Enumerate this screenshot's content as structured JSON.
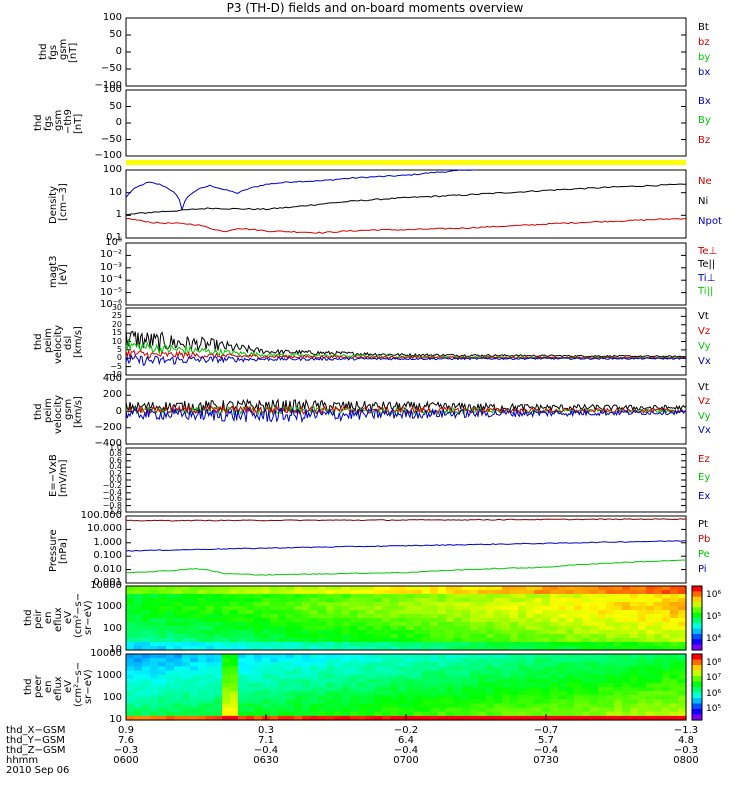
{
  "title": "P3 (TH-D) fields and on-board moments overview",
  "colors": {
    "black": "#000000",
    "red": "#d40000",
    "green": "#00c800",
    "blue": "#0000c8",
    "yellow": "#ffff00",
    "darkred": "#800000"
  },
  "chart_data": [
    {
      "type": "line",
      "id": "fgs",
      "ylabel": [
        "thd",
        "fgs",
        "gsm",
        "[nT]"
      ],
      "yticks": [
        "100",
        "50",
        "0",
        "−50",
        "−100"
      ],
      "ylim": [
        -100,
        100
      ],
      "legend": [
        "Bt",
        "bz",
        "by",
        "bx"
      ],
      "legend_colors": [
        "#000000",
        "#d40000",
        "#00c800",
        "#0000c8"
      ],
      "series": []
    },
    {
      "type": "line",
      "id": "fgs_th",
      "ylabel": [
        "thd",
        "fgs",
        "gsm",
        "−th9",
        "[nT]"
      ],
      "yticks": [
        "100",
        "50",
        "0",
        "−50",
        "−100"
      ],
      "ylim": [
        -120,
        120
      ],
      "legend": [
        "Bx",
        "By",
        "Bz"
      ],
      "legend_colors": [
        "#0000c8",
        "#00c800",
        "#d40000"
      ],
      "series": []
    },
    {
      "type": "line",
      "id": "density",
      "ylabel": [
        "Density",
        "[cm−3]"
      ],
      "yticks": [
        "100",
        "10",
        "1",
        "0.1"
      ],
      "ylim": [
        0.1,
        200
      ],
      "log": true,
      "legend": [
        "Ne",
        "Ni",
        "Npot"
      ],
      "legend_colors": [
        "#d40000",
        "#000000",
        "#0000c8"
      ],
      "series": [
        {
          "name": "Npot",
          "color": "#0000c8",
          "x": [
            6.0,
            6.08,
            6.12,
            6.2,
            6.25,
            6.3,
            6.35,
            6.4,
            6.5,
            6.6,
            6.7,
            6.8,
            6.9,
            7.0,
            7.1,
            7.2,
            7.25
          ],
          "y": [
            9,
            50,
            40,
            2.5,
            20,
            35,
            22,
            15,
            40,
            55,
            60,
            80,
            95,
            110,
            150,
            190,
            220
          ]
        },
        {
          "name": "Ni",
          "color": "#000000",
          "x": [
            6.0,
            6.05,
            6.1,
            6.2,
            6.3,
            6.4,
            6.5,
            6.6,
            6.7,
            6.8,
            6.9,
            7.0,
            7.2,
            7.4,
            7.6,
            7.8,
            8.0
          ],
          "y": [
            1.3,
            1.6,
            1.8,
            2.2,
            2.8,
            2.6,
            2.5,
            3.2,
            4.5,
            6,
            7.5,
            9,
            12,
            17,
            24,
            32,
            40
          ]
        },
        {
          "name": "Ne",
          "color": "#d40000",
          "x": [
            6.0,
            6.05,
            6.1,
            6.2,
            6.25,
            6.3,
            6.35,
            6.4,
            6.5,
            6.6,
            6.7,
            6.8,
            6.9,
            7.0,
            7.2,
            7.4,
            7.6,
            7.8,
            8.0
          ],
          "y": [
            0.9,
            0.7,
            0.55,
            0.5,
            0.45,
            0.3,
            0.2,
            0.3,
            0.22,
            0.2,
            0.18,
            0.22,
            0.25,
            0.25,
            0.3,
            0.4,
            0.55,
            0.7,
            0.9
          ]
        }
      ]
    },
    {
      "type": "line",
      "id": "magt3",
      "ylabel": [
        "magt3",
        "[eV]"
      ],
      "yticks": [
        "10⁰",
        "10⁻²",
        "10⁻³",
        "10⁻⁴",
        "10⁻⁵",
        "10⁻⁶"
      ],
      "ylim": [
        -6,
        0
      ],
      "legend": [
        "Te⊥",
        "Te||",
        "Ti⊥",
        "Ti||"
      ],
      "legend_colors": [
        "#d40000",
        "#000000",
        "#0000c8",
        "#00c800"
      ],
      "series": []
    },
    {
      "type": "line",
      "id": "vel_dsl",
      "ylabel": [
        "thd",
        "peim",
        "velocity",
        "dsl",
        "[km/s]"
      ],
      "yticks": [
        "30",
        "25",
        "20",
        "15",
        "10",
        "5",
        "0",
        "−5",
        "−10"
      ],
      "ylim": [
        -10,
        30
      ],
      "legend": [
        "Vt",
        "Vz",
        "Vy",
        "Vx"
      ],
      "legend_colors": [
        "#000000",
        "#d40000",
        "#00c800",
        "#0000c8"
      ],
      "series": [
        {
          "name": "Vt",
          "color": "#000000",
          "x": [
            6.0,
            6.1,
            6.2,
            6.3,
            6.5,
            7.0,
            7.5,
            8.0
          ],
          "y": [
            12,
            10,
            9,
            8,
            4,
            2,
            1.5,
            1
          ],
          "noise": [
            7,
            6,
            5,
            4,
            1.5,
            0.8,
            0.5,
            0.4
          ]
        },
        {
          "name": "Vy",
          "color": "#00c800",
          "x": [
            6.0,
            6.1,
            6.2,
            6.3,
            6.5,
            7.0,
            7.5,
            8.0
          ],
          "y": [
            8,
            6,
            5,
            4,
            2,
            1,
            0.5,
            0.3
          ],
          "noise": [
            4,
            3,
            3,
            2,
            1,
            0.5,
            0.4,
            0.3
          ]
        },
        {
          "name": "Vz",
          "color": "#d40000",
          "x": [
            6.0,
            6.1,
            6.2,
            6.3,
            6.5,
            7.0,
            7.5,
            8.0
          ],
          "y": [
            3,
            2,
            2,
            1.5,
            1,
            0.5,
            0.3,
            0.2
          ],
          "noise": [
            3,
            2,
            2,
            1.5,
            1,
            0.5,
            0.4,
            0.3
          ]
        },
        {
          "name": "Vx",
          "color": "#0000c8",
          "x": [
            6.0,
            6.1,
            6.2,
            6.3,
            6.5,
            7.0,
            7.5,
            8.0
          ],
          "y": [
            -1,
            -1.5,
            -1,
            -0.8,
            -0.5,
            -0.3,
            -0.2,
            -0.2
          ],
          "noise": [
            3,
            3,
            2.5,
            2,
            1,
            0.6,
            0.5,
            0.4
          ]
        }
      ]
    },
    {
      "type": "line",
      "id": "vel_gsm",
      "ylabel": [
        "thd",
        "peim",
        "velocity",
        "gsm",
        "[km/s]"
      ],
      "yticks": [
        "400",
        "200",
        "0",
        "−200",
        "−400"
      ],
      "ylim": [
        -400,
        400
      ],
      "legend": [
        "Vt",
        "Vz",
        "Vy",
        "Vx"
      ],
      "legend_colors": [
        "#000000",
        "#d40000",
        "#00c800",
        "#0000c8"
      ],
      "series": [
        {
          "name": "Vt",
          "color": "#000000",
          "x": [
            6.0,
            6.5,
            7.0,
            7.5,
            8.0
          ],
          "y": [
            60,
            70,
            60,
            50,
            45
          ],
          "noise": [
            60,
            80,
            60,
            40,
            30
          ]
        },
        {
          "name": "Vy",
          "color": "#00c800",
          "x": [
            6.0,
            6.5,
            7.0,
            7.5,
            8.0
          ],
          "y": [
            10,
            10,
            5,
            5,
            5
          ],
          "noise": [
            40,
            50,
            40,
            30,
            20
          ]
        },
        {
          "name": "Vz",
          "color": "#d40000",
          "x": [
            6.0,
            6.5,
            7.0,
            7.5,
            8.0
          ],
          "y": [
            20,
            20,
            15,
            10,
            10
          ],
          "noise": [
            40,
            50,
            40,
            30,
            20
          ]
        },
        {
          "name": "Vx",
          "color": "#0000c8",
          "x": [
            6.0,
            6.5,
            7.0,
            7.5,
            8.0
          ],
          "y": [
            -30,
            -50,
            -30,
            -20,
            -10
          ],
          "noise": [
            60,
            90,
            60,
            40,
            25
          ]
        }
      ]
    },
    {
      "type": "line",
      "id": "efield",
      "ylabel": [
        "E=−VxB",
        "[mV/m]"
      ],
      "yticks": [
        "1.0",
        "0.8",
        "0.6",
        "0.4",
        "0.2",
        "0.0",
        "−0.2",
        "−0.4",
        "−0.6",
        "−0.8",
        "−1.0"
      ],
      "ylim": [
        -1,
        1
      ],
      "legend": [
        "Ez",
        "Ey",
        "Ex"
      ],
      "legend_colors": [
        "#d40000",
        "#00c800",
        "#0000c8"
      ],
      "series": []
    },
    {
      "type": "line",
      "id": "pressure",
      "ylabel": [
        "Pressure",
        "[nPa]"
      ],
      "yticks": [
        "100.000",
        "10.000",
        "1.000",
        "0.100",
        "0.010",
        "0.001"
      ],
      "ylim": [
        0.001,
        100
      ],
      "log": true,
      "legend": [
        "Pt",
        "Pb",
        "Pe",
        "Pi"
      ],
      "legend_colors": [
        "#000000",
        "#d40000",
        "#00c800",
        "#0000c8"
      ],
      "series": [
        {
          "name": "Pt",
          "color": "#800000",
          "x": [
            6.0,
            7.0,
            8.0
          ],
          "y": [
            45,
            50,
            60
          ]
        },
        {
          "name": "Pi",
          "color": "#0000c8",
          "x": [
            6.0,
            6.2,
            6.5,
            7.0,
            7.5,
            8.0
          ],
          "y": [
            0.25,
            0.3,
            0.4,
            0.6,
            0.9,
            1.4
          ]
        },
        {
          "name": "Pe",
          "color": "#00c800",
          "x": [
            6.0,
            6.15,
            6.25,
            6.35,
            6.5,
            7.0,
            7.5,
            8.0
          ],
          "y": [
            0.006,
            0.008,
            0.012,
            0.005,
            0.004,
            0.006,
            0.015,
            0.05
          ]
        }
      ]
    },
    {
      "type": "heatmap",
      "id": "peir",
      "ylabel": [
        "thd",
        "peir",
        "en",
        "eflux",
        "eV",
        "(cm²−s−",
        "sr−eV)"
      ],
      "yticks": [
        "10000",
        "1000",
        "100",
        "10"
      ],
      "colorbar_ticks": [
        "10⁶",
        "10⁵",
        "10⁴"
      ]
    },
    {
      "type": "heatmap",
      "id": "peer",
      "ylabel": [
        "thd",
        "peer",
        "en",
        "eflux",
        "eV",
        "(cm²−s−",
        "sr−eV)"
      ],
      "yticks": [
        "10000",
        "1000",
        "100",
        "10"
      ],
      "colorbar_ticks": [
        "10⁸",
        "10⁷",
        "10⁶",
        "10⁵"
      ]
    }
  ],
  "xaxis": {
    "rows": [
      {
        "label": "thd_X−GSM",
        "values": [
          "0.9",
          "0.3",
          "−0.2",
          "−0.7",
          "−1.3"
        ]
      },
      {
        "label": "thd_Y−GSM",
        "values": [
          "7.6",
          "7.1",
          "6.4",
          "5.7",
          "4.8"
        ]
      },
      {
        "label": "thd_Z−GSM",
        "values": [
          "−0.3",
          "−0.4",
          "−0.4",
          "−0.4",
          "−0.3"
        ]
      },
      {
        "label": "hhmm",
        "values": [
          "0600",
          "0630",
          "0700",
          "0730",
          "0800"
        ]
      }
    ],
    "date": "2010 Sep 06",
    "range": [
      6.0,
      8.0
    ]
  }
}
